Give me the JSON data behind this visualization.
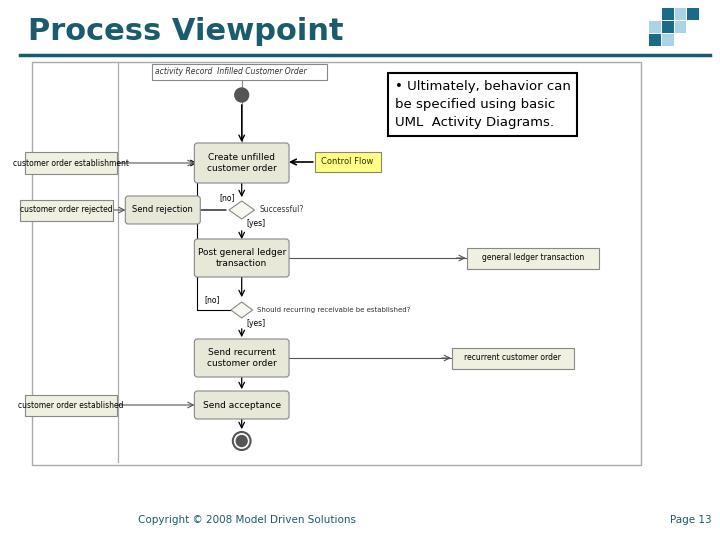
{
  "title": "Process Viewpoint",
  "title_color": "#1a5c6e",
  "title_fontsize": 22,
  "bg_color": "#ffffff",
  "footer_text": "Copyright © 2008 Model Driven Solutions",
  "footer_page": "Page 13",
  "footer_color": "#1a5c6e",
  "divider_color": "#1a5c6e",
  "bullet_line1": "• Ultimately, behavior can",
  "bullet_line2": "be specified using basic",
  "bullet_line3": "UML  Activity Diagrams.",
  "activity_label": "activity Record  Infilled Customer Order",
  "node_fill": "#e8e8d8",
  "node_stroke": "#888888",
  "diamond_fill": "#f8f8f0",
  "diamond_stroke": "#888888",
  "control_flow_fill": "#ffff88",
  "control_flow_stroke": "#888866",
  "swimlane_fill": "#f0f0e0",
  "swimlane_stroke": "#888888",
  "node1_text": "Create unfilled\ncustomer order",
  "node2_text": "Send rejection",
  "node3_text": "Post general ledger\ntransaction",
  "node4_text": "Send recurrent\ncustomer order",
  "node5_text": "Send acceptance",
  "diamond1_text": "Successful?",
  "diamond2_text": "Should recurring receivable be established?",
  "label_no1": "[no]",
  "label_yes1": "[yes]",
  "label_no2": "[no]",
  "label_yes2": "[yes]",
  "output1_text": "general ledger transaction",
  "output2_text": "recurrent customer order",
  "control_flow_text": "Control Flow",
  "swimlane1_text": "customer order establishment",
  "swimlane2_text": "customer order rejected",
  "swimlane3_text": "customer order established",
  "logo_dark": "#1a6b8a",
  "logo_light": "#a8d4e6"
}
